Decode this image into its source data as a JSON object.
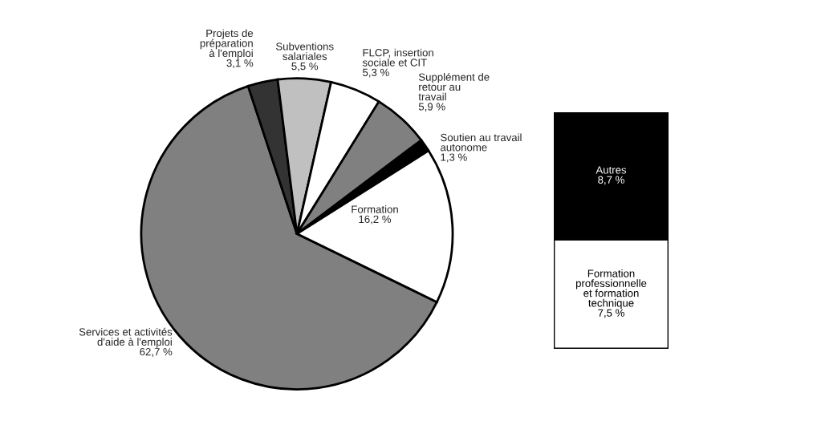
{
  "chart_data": [
    {
      "type": "pie",
      "categories": [
        "Services et activités d'aide à l'emploi",
        "Projets de préparation à l'emploi",
        "Subventions salariales",
        "FLCP, insertion sociale et CIT",
        "Supplément de retour au travail",
        "Soutien au travail autonome",
        "Formation"
      ],
      "values": [
        62.7,
        3.1,
        5.5,
        5.3,
        5.9,
        1.3,
        16.2
      ],
      "value_labels": [
        "62,7 %",
        "3,1 %",
        "5,5 %",
        "5,3 %",
        "5,9 %",
        "1,3 %",
        "16,2 %"
      ],
      "colors": [
        "#808080",
        "#333333",
        "#c0c0c0",
        "#ffffff",
        "#808080",
        "#000000",
        "#ffffff"
      ]
    },
    {
      "type": "bar",
      "categories": [
        null
      ],
      "stacked": true,
      "series": [
        {
          "name": "Formation professionnelle et formation technique",
          "color": "#ffffff",
          "values": [
            7.5
          ],
          "value_labels": [
            "7,5 %"
          ]
        },
        {
          "name": "Autres",
          "color": "#000000",
          "values": [
            8.7
          ],
          "value_labels": [
            "8,7 %"
          ]
        }
      ]
    }
  ]
}
